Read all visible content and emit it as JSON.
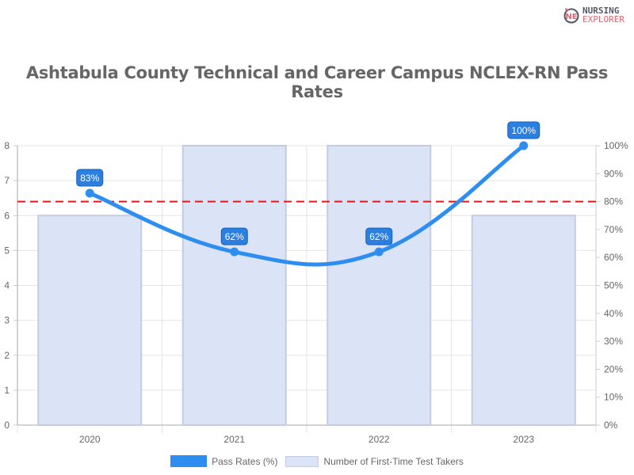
{
  "logo": {
    "line1": "NURSING",
    "line2": "EXPLORER",
    "line1_color": "#555a6a",
    "line2_color": "#e06470"
  },
  "chart_data": {
    "type": "bar+line",
    "title": "Ashtabula County Technical and Career Campus NCLEX-RN Pass Rates",
    "categories": [
      "2020",
      "2021",
      "2022",
      "2023"
    ],
    "series": [
      {
        "name": "Pass Rates (%)",
        "type": "line",
        "axis": "right",
        "values": [
          83,
          62,
          62,
          100
        ],
        "labels": [
          "83%",
          "62%",
          "62%",
          "100%"
        ],
        "color": "#2e8ef0"
      },
      {
        "name": "Number of First-Time Test Takers",
        "type": "bar",
        "axis": "left",
        "values": [
          6,
          8,
          8,
          6
        ],
        "color": "#dbe3f7",
        "border": "#c5cce0"
      }
    ],
    "left_axis": {
      "ylim": [
        0,
        8
      ],
      "ticks": [
        "0",
        "1",
        "2",
        "3",
        "4",
        "5",
        "6",
        "7",
        "8"
      ]
    },
    "right_axis": {
      "ylim": [
        0,
        100
      ],
      "ticks": [
        "0%",
        "10%",
        "20%",
        "30%",
        "40%",
        "50%",
        "60%",
        "70%",
        "80%",
        "90%",
        "100%"
      ]
    },
    "reference_line": {
      "value": 80,
      "axis": "right",
      "color": "#e8141e",
      "style": "dashed"
    },
    "grid": true,
    "legend": "bottom"
  }
}
